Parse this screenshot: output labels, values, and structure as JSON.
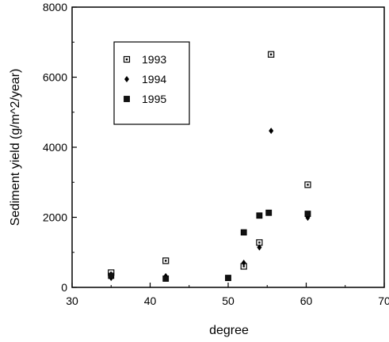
{
  "chart_data": {
    "type": "scatter",
    "title": "",
    "xlabel": "degree",
    "ylabel": "Sediment yield (g/m^2/year)",
    "xlim": [
      30,
      70
    ],
    "ylim": [
      0,
      8000
    ],
    "xticks": [
      30,
      40,
      50,
      60,
      70
    ],
    "yticks": [
      0,
      2000,
      4000,
      6000,
      8000
    ],
    "grid": false,
    "legend_position": "top-left",
    "series": [
      {
        "name": "1993",
        "marker": "open-square",
        "points": [
          {
            "x": 35,
            "y": 420
          },
          {
            "x": 42,
            "y": 760
          },
          {
            "x": 52,
            "y": 600
          },
          {
            "x": 54,
            "y": 1280
          },
          {
            "x": 55.5,
            "y": 6650
          },
          {
            "x": 60.2,
            "y": 2930
          }
        ]
      },
      {
        "name": "1994",
        "marker": "diamond",
        "points": [
          {
            "x": 35,
            "y": 270
          },
          {
            "x": 42,
            "y": 320
          },
          {
            "x": 52,
            "y": 700
          },
          {
            "x": 54,
            "y": 1140
          },
          {
            "x": 55.5,
            "y": 4470
          },
          {
            "x": 60.2,
            "y": 1990
          }
        ]
      },
      {
        "name": "1995",
        "marker": "filled-square",
        "points": [
          {
            "x": 35,
            "y": 330
          },
          {
            "x": 42,
            "y": 250
          },
          {
            "x": 50,
            "y": 270
          },
          {
            "x": 52,
            "y": 1570
          },
          {
            "x": 54,
            "y": 2050
          },
          {
            "x": 55.2,
            "y": 2130
          },
          {
            "x": 60.2,
            "y": 2100
          }
        ]
      }
    ]
  }
}
